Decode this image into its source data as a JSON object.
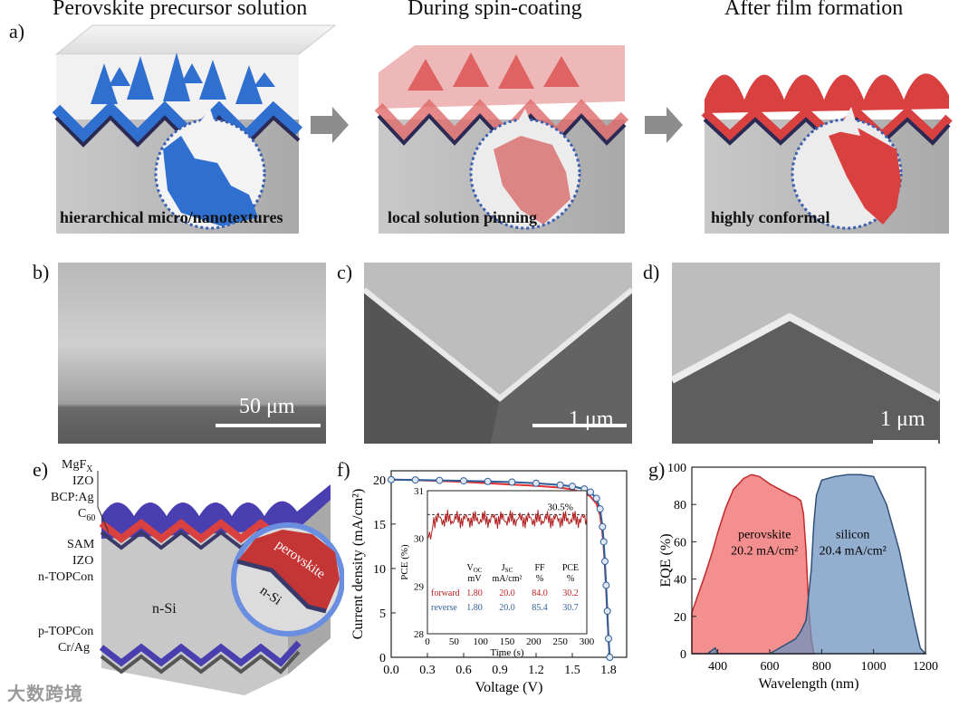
{
  "panel_labels": {
    "a": "a)",
    "b": "b)",
    "c": "c)",
    "d": "d)",
    "e": "e)",
    "f": "f)",
    "g": "g)"
  },
  "panel_a": {
    "titles": [
      "Perovskite precursor solution",
      "During spin-coating",
      "After film formation"
    ],
    "captions": [
      "hierarchical micro/nanotextures",
      "local solution pinning",
      "highly conformal"
    ]
  },
  "sem": {
    "b_scale": "50 μm",
    "c_scale": "1 μm",
    "d_scale": "1 μm"
  },
  "panel_e": {
    "layers_top": [
      "MgF",
      "X",
      "IZO",
      "BCP:Ag",
      "C",
      "60",
      "SAM",
      "IZO",
      "n-TOPCon"
    ],
    "layers_bottom": [
      "p-TOPCon",
      "Cr/Ag"
    ],
    "center_label": "n-Si",
    "inset_perovskite": "perovskite",
    "inset_nsi": "n-Si"
  },
  "watermark": "大数跨境",
  "colors": {
    "blue": "#2f6fd0",
    "red": "#d94040",
    "device_purple": "#4a3fb0",
    "eqe_red": "#f06a6a",
    "eqe_blue": "#6f93bd",
    "jv_red": "#e03030",
    "jv_blue": "#2f5e9a"
  },
  "chart_data": [
    {
      "type": "line",
      "title": "",
      "xlabel": "Voltage (V)",
      "ylabel": "Current density (mA/cm²)",
      "xlim": [
        0.0,
        1.95
      ],
      "ylim": [
        0,
        21
      ],
      "x_ticks": [
        "0.0",
        "0.3",
        "0.6",
        "0.9",
        "1.2",
        "1.5",
        "1.8"
      ],
      "y_ticks": [
        "0",
        "5",
        "10",
        "15",
        "20"
      ],
      "series": [
        {
          "name": "forward",
          "color": "#e03030",
          "x": [
            0,
            0.2,
            0.4,
            0.6,
            0.8,
            1.0,
            1.2,
            1.4,
            1.5,
            1.6,
            1.65,
            1.7,
            1.73,
            1.75,
            1.76,
            1.77,
            1.78,
            1.79,
            1.8,
            1.81
          ],
          "y": [
            20.0,
            19.95,
            19.85,
            19.75,
            19.6,
            19.45,
            19.3,
            19.1,
            18.9,
            18.5,
            18.1,
            17.3,
            16.0,
            13.9,
            12.3,
            10.2,
            7.6,
            4.8,
            1.9,
            0
          ]
        },
        {
          "name": "reverse",
          "color": "#2f5e9a",
          "x": [
            0,
            0.2,
            0.4,
            0.6,
            0.8,
            1.0,
            1.2,
            1.4,
            1.5,
            1.6,
            1.65,
            1.7,
            1.73,
            1.75,
            1.76,
            1.77,
            1.78,
            1.79,
            1.8,
            1.81
          ],
          "y": [
            20.0,
            19.97,
            19.92,
            19.87,
            19.8,
            19.72,
            19.6,
            19.4,
            19.25,
            18.95,
            18.6,
            17.9,
            16.7,
            14.7,
            13.0,
            10.8,
            8.1,
            5.2,
            2.1,
            0
          ]
        }
      ],
      "inset": {
        "type": "line",
        "xlabel": "Time (s)",
        "ylabel": "PCE (%)",
        "xlim": [
          0,
          300
        ],
        "ylim": [
          28,
          31
        ],
        "x_ticks": [
          "0",
          "50",
          "100",
          "150",
          "200",
          "250",
          "300"
        ],
        "y_ticks": [
          "28",
          "29",
          "30",
          "31"
        ],
        "annotation": "30.5%",
        "reference": 30.5,
        "level": 30.4,
        "table": {
          "headers": [
            [
              "V",
              "OC"
            ],
            [
              "J",
              "SC"
            ],
            [
              "FF",
              ""
            ],
            [
              "PCE",
              ""
            ]
          ],
          "units": [
            "mV",
            "mA/cm²",
            "%",
            "%"
          ],
          "rows": [
            {
              "label": "forward",
              "values": [
                "1.80",
                "20.0",
                "84.0",
                "30.2"
              ]
            },
            {
              "label": "reverse",
              "values": [
                "1.80",
                "20.0",
                "85.4",
                "30.7"
              ]
            }
          ]
        }
      }
    },
    {
      "type": "area",
      "xlabel": "Wavelength (nm)",
      "ylabel": "EQE (%)",
      "xlim": [
        300,
        1200
      ],
      "ylim": [
        0,
        100
      ],
      "x_ticks": [
        "400",
        "600",
        "800",
        "1000",
        "1200"
      ],
      "y_ticks": [
        "0",
        "20",
        "40",
        "60",
        "80",
        "100"
      ],
      "series": [
        {
          "name": "perovskite",
          "label_value": "20.2 mA/cm²",
          "color": "#f06a6a",
          "x": [
            300,
            320,
            350,
            380,
            400,
            430,
            460,
            500,
            530,
            560,
            600,
            640,
            680,
            700,
            720,
            730,
            740,
            750,
            760,
            770
          ],
          "y": [
            22,
            30,
            42,
            55,
            65,
            78,
            88,
            94,
            96,
            95,
            91,
            88,
            85,
            84,
            82,
            75,
            55,
            25,
            8,
            0
          ]
        },
        {
          "name": "silicon",
          "label_value": "20.4 mA/cm²",
          "color": "#6f93bd",
          "x": [
            300,
            360,
            390,
            400,
            410,
            500,
            600,
            700,
            720,
            740,
            760,
            770,
            780,
            800,
            850,
            900,
            950,
            1000,
            1050,
            1080,
            1100,
            1130,
            1160,
            1180,
            1200
          ],
          "y": [
            0,
            0,
            3,
            0,
            0,
            0,
            0,
            8,
            12,
            18,
            45,
            70,
            85,
            93,
            95,
            96,
            96,
            95,
            80,
            65,
            55,
            35,
            15,
            3,
            0
          ]
        }
      ]
    }
  ]
}
